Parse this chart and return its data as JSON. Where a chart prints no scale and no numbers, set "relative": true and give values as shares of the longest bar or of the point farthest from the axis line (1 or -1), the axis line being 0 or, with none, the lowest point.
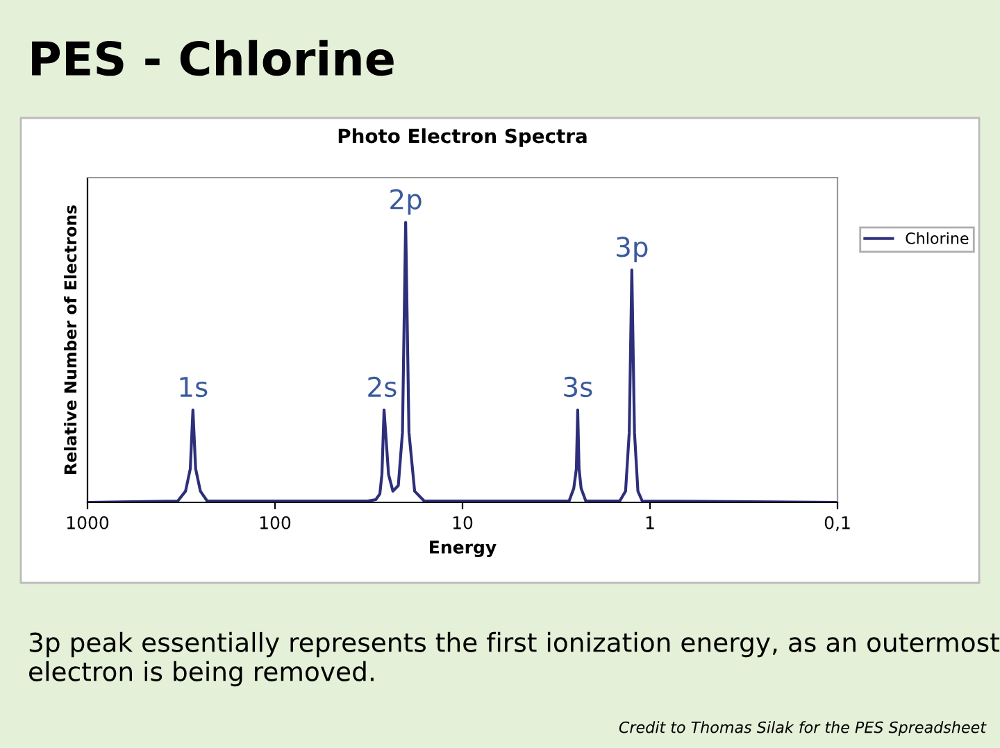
{
  "chart_data": {
    "type": "line",
    "title": "Photo Electron Spectra",
    "xlabel": "Energy",
    "ylabel": "Relative Number of Electrons",
    "relative": true,
    "log": "x",
    "xlim": [
      1000,
      0.1
    ],
    "xticks": [
      1000,
      100,
      10,
      1,
      {
        "value": 0.1,
        "label": "0,1"
      }
    ],
    "grid": false,
    "legend": "right",
    "marker": "none",
    "line_style": "solid",
    "series": [
      {
        "name": "Chlorine",
        "color": "#2e2f7a",
        "x": [
          0.1,
          1.1,
          1.16,
          1.21,
          1.25,
          1.29,
          1.35,
          1.45,
          2.2,
          2.33,
          2.39,
          2.43,
          2.47,
          2.55,
          2.7,
          16,
          18,
          19.3,
          20.1,
          20.9,
          22,
          23.5,
          24.8,
          26.2,
          26.9,
          27.6,
          29,
          32,
          40,
          230,
          250,
          265,
          274,
          283,
          300,
          330,
          1000
        ],
        "values": [
          0,
          0.005,
          0.04,
          0.25,
          0.83,
          0.25,
          0.04,
          0.005,
          0.005,
          0.05,
          0.12,
          0.33,
          0.12,
          0.05,
          0.005,
          0.005,
          0.04,
          0.25,
          1,
          0.25,
          0.06,
          0.04,
          0.1,
          0.33,
          0.1,
          0.03,
          0.01,
          0.005,
          0.005,
          0.005,
          0.04,
          0.12,
          0.33,
          0.12,
          0.04,
          0.005,
          0
        ]
      }
    ],
    "annotations": [
      "PES - Chlorine",
      {
        "text": "1s",
        "x": 274,
        "y": 0.33
      },
      {
        "text": "2s",
        "x": 26.9,
        "y": 0.33
      },
      {
        "text": "2p",
        "x": 20.1,
        "y": 1
      },
      {
        "text": "3s",
        "x": 2.43,
        "y": 0.33
      },
      {
        "text": "3p",
        "x": 1.25,
        "y": 0.83
      },
      "3p peak essentially represents the first ionization energy, as an outermost electron is being removed.",
      "Credit to Thomas Silak for the PES Spreadsheet"
    ]
  }
}
